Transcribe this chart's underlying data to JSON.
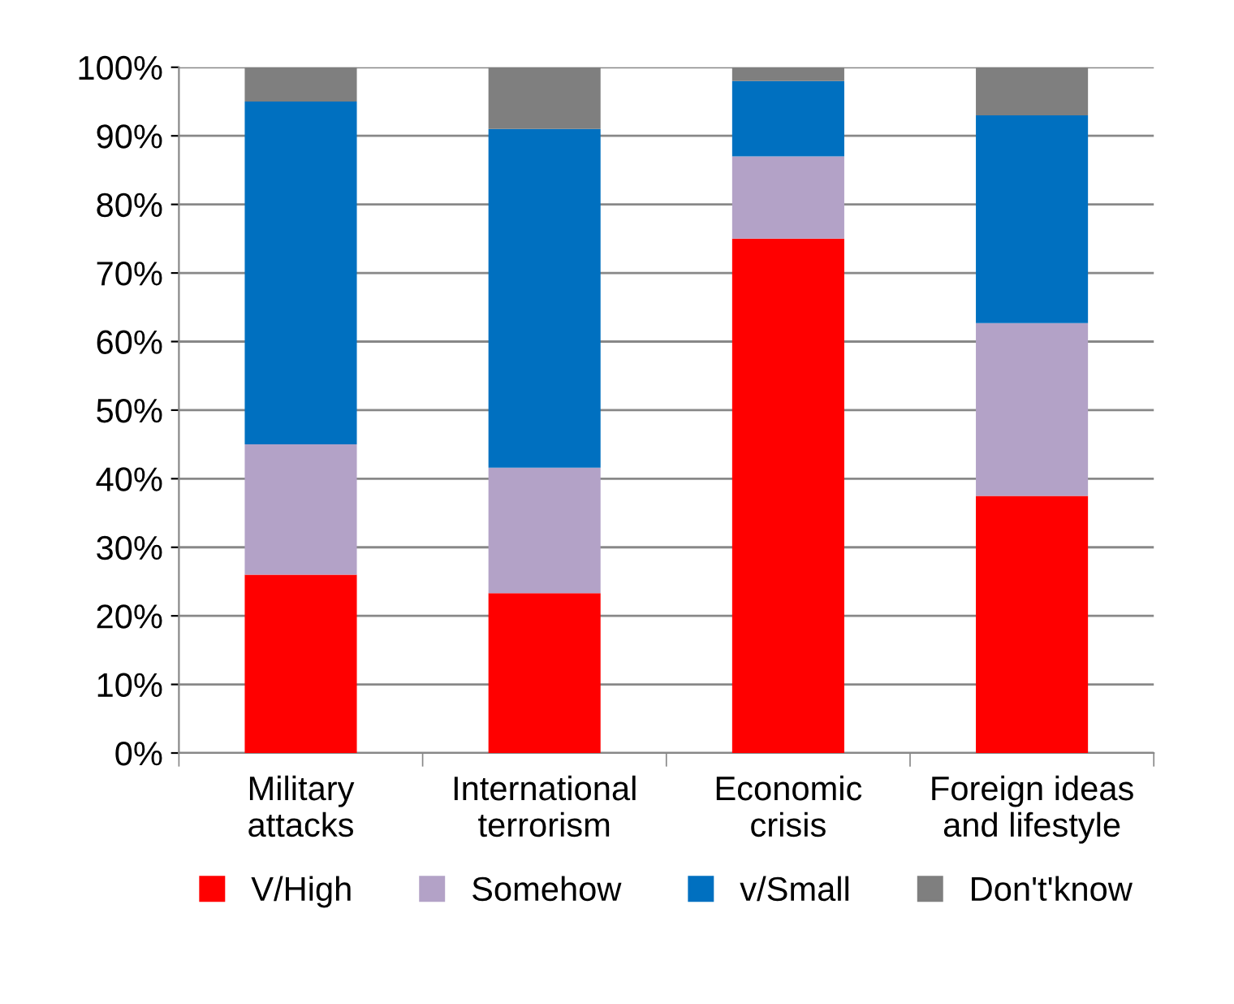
{
  "chart_data": {
    "type": "bar",
    "stacked": true,
    "categories": [
      "Military\nattacks",
      "International\nterrorism",
      "Economic\ncrisis",
      "Foreign ideas\nand lifestyle"
    ],
    "series": [
      {
        "name": "V/High",
        "color": "#ff0000",
        "values": [
          26,
          23.3,
          75,
          37.5
        ]
      },
      {
        "name": "Somehow",
        "color": "#b3a2c7",
        "values": [
          19,
          18.3,
          12,
          25.2
        ]
      },
      {
        "name": "v/Small",
        "color": "#0070c0",
        "values": [
          50,
          49.4,
          11,
          30.3
        ]
      },
      {
        "name": "Don't'know",
        "color": "#7f7f7f",
        "values": [
          5,
          9,
          2,
          7
        ]
      }
    ],
    "ylim": [
      0,
      100
    ],
    "yticks": [
      {
        "value": 0,
        "label": "0%"
      },
      {
        "value": 10,
        "label": "10%"
      },
      {
        "value": 20,
        "label": "20%"
      },
      {
        "value": 30,
        "label": "30%"
      },
      {
        "value": 40,
        "label": "40%"
      },
      {
        "value": 50,
        "label": "50%"
      },
      {
        "value": 60,
        "label": "60%"
      },
      {
        "value": 70,
        "label": "70%"
      },
      {
        "value": 80,
        "label": "80%"
      },
      {
        "value": 90,
        "label": "90%"
      },
      {
        "value": 100,
        "label": "100%"
      }
    ],
    "grid": "y",
    "legend": "bottom"
  }
}
